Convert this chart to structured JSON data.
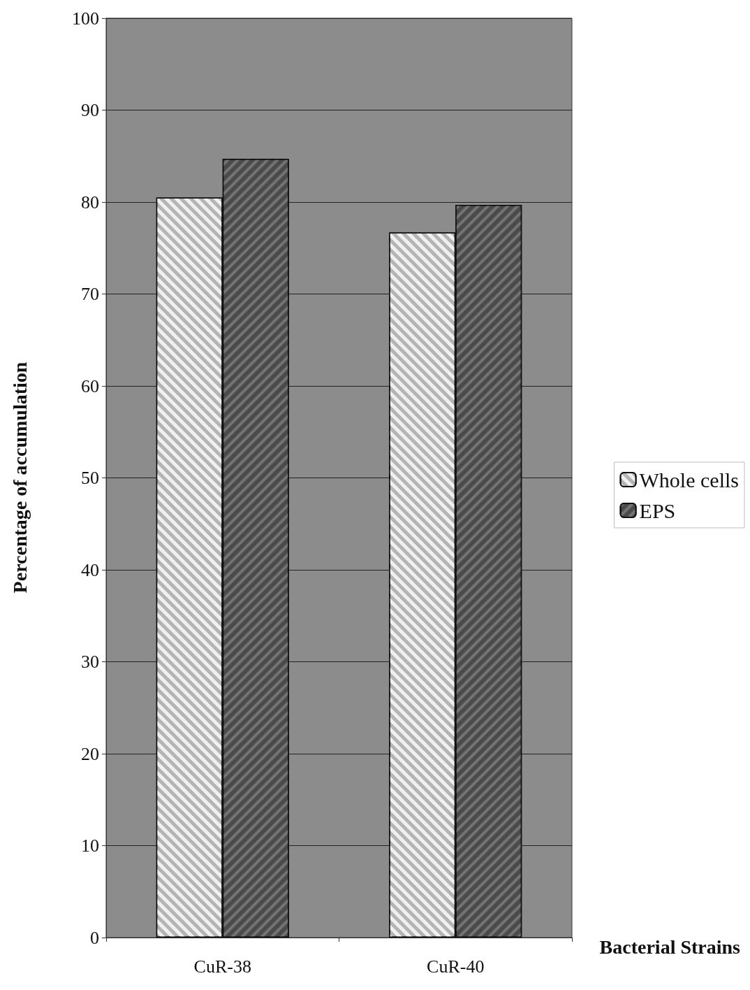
{
  "chart_data": {
    "type": "bar",
    "xlabel": "Bacterial Strains",
    "ylabel": "Percentage of accumulation",
    "categories": [
      "CuR-38",
      "CuR-40"
    ],
    "series": [
      {
        "name": "Whole cells",
        "color": "#b4b4b4",
        "values": [
          80.5,
          76.7
        ]
      },
      {
        "name": "EPS",
        "color": "#4a4a4a",
        "values": [
          84.7,
          79.7
        ]
      }
    ],
    "ylim": [
      0,
      100
    ],
    "yticks": [
      0,
      10,
      20,
      30,
      40,
      50,
      60,
      70,
      80,
      90,
      100
    ],
    "grid": "y",
    "legend": "right"
  }
}
